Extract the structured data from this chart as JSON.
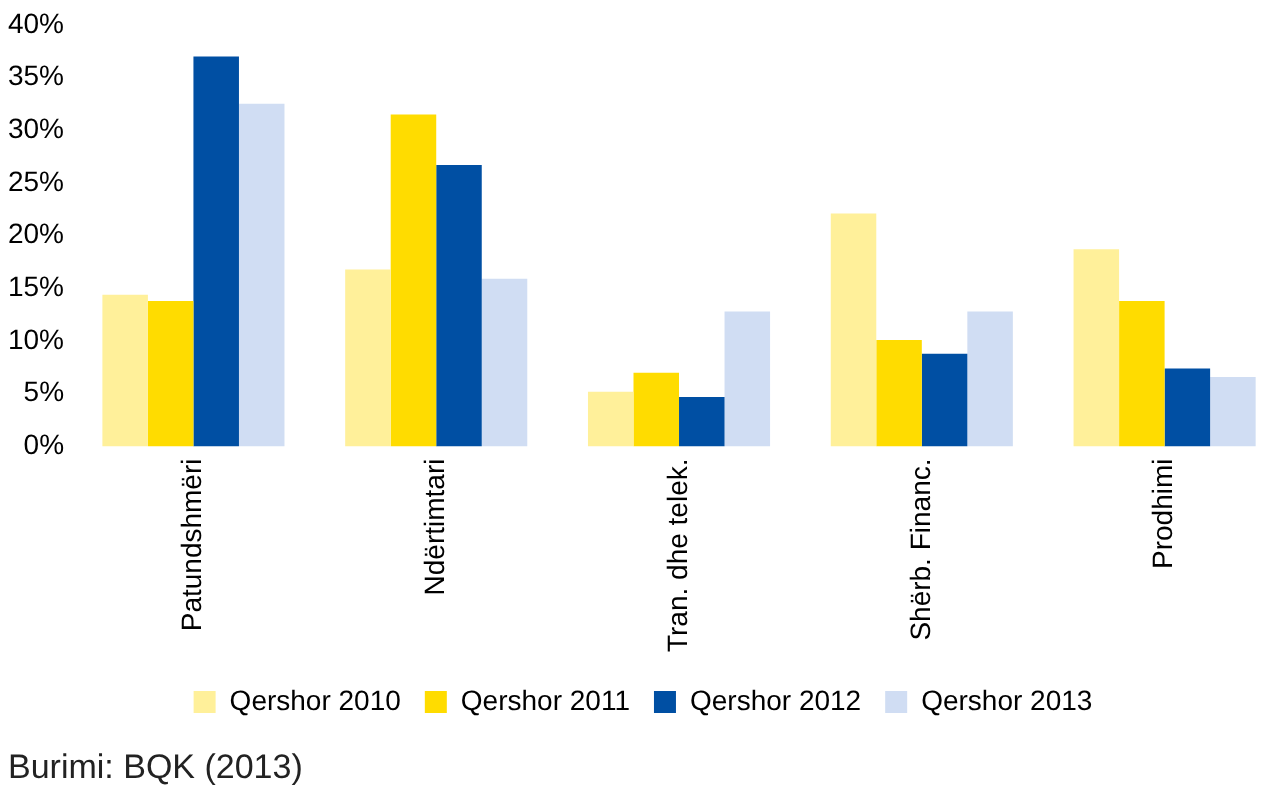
{
  "chart_data": {
    "type": "bar",
    "categories": [
      "Patundshmëri",
      "Ndërtimtari",
      "Tran. dhe telek.",
      "Shërb. Financ.",
      "Prodhimi"
    ],
    "series": [
      {
        "name": "Qershor 2010",
        "color": "#fff09a",
        "values": [
          14.4,
          16.8,
          5.2,
          22.1,
          18.7
        ]
      },
      {
        "name": "Qershor 2011",
        "color": "#ffdc00",
        "values": [
          13.8,
          31.5,
          7.0,
          10.1,
          13.8
        ]
      },
      {
        "name": "Qershor 2012",
        "color": "#004fa3",
        "values": [
          37.0,
          26.7,
          4.7,
          8.8,
          7.4
        ]
      },
      {
        "name": "Qershor 2013",
        "color": "#d0ddf3",
        "values": [
          32.5,
          15.9,
          12.8,
          12.8,
          6.6
        ]
      }
    ],
    "ylim": [
      0,
      40
    ],
    "yticks": [
      {
        "value": 0,
        "label": "0%"
      },
      {
        "value": 5,
        "label": "5%"
      },
      {
        "value": 10,
        "label": "10%"
      },
      {
        "value": 15,
        "label": "15%"
      },
      {
        "value": 20,
        "label": "20%"
      },
      {
        "value": 25,
        "label": "25%"
      },
      {
        "value": 30,
        "label": "30%"
      },
      {
        "value": 35,
        "label": "35%"
      },
      {
        "value": 40,
        "label": "40%"
      }
    ],
    "grid": false,
    "legend": "bottom",
    "annotations": [
      "Burimi: BQK (2013)"
    ]
  }
}
